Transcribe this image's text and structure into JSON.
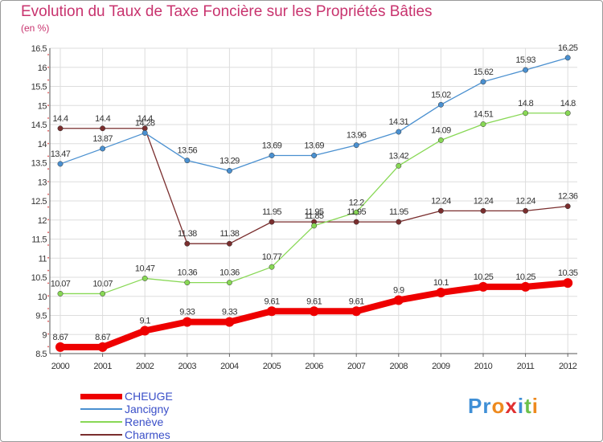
{
  "title": "Evolution du Taux de Taxe Foncière sur les Propriétés Bâties",
  "unit_label": "(en %)",
  "logo": "Proxiti",
  "chart_data": {
    "type": "line",
    "title": "Evolution du Taux de Taxe Foncière sur les Propriétés Bâties",
    "ylabel": "(en %)",
    "x": [
      "2000",
      "2001",
      "2002",
      "2003",
      "2004",
      "2005",
      "2006",
      "2007",
      "2008",
      "2009",
      "2010",
      "2011",
      "2012"
    ],
    "ylim": [
      8.5,
      16.5
    ],
    "yticks": [
      "8.5",
      "9",
      "9.5",
      "10",
      "10.5",
      "11",
      "11.5",
      "12",
      "12.5",
      "13",
      "13.5",
      "14",
      "14.5",
      "15",
      "15.5",
      "16",
      "16.5"
    ],
    "grid": true,
    "legend": "bottom-left",
    "series": [
      {
        "name": "CHEUGE",
        "color": "#ee0000",
        "labels": [
          "8.67",
          "8.67",
          "9.1",
          "9.33",
          "9.33",
          "9.61",
          "9.61",
          "9.61",
          "9.9",
          "10.1",
          "10.25",
          "10.25",
          "10.35"
        ],
        "values": [
          8.67,
          8.67,
          9.1,
          9.33,
          9.33,
          9.61,
          9.61,
          9.61,
          9.9,
          10.1,
          10.25,
          10.25,
          10.35
        ]
      },
      {
        "name": "Jancigny",
        "color": "#4a90d0",
        "labels": [
          "13.47",
          "13.87",
          "14.28",
          "13.56",
          "13.29",
          "13.69",
          "13.69",
          "13.96",
          "14.31",
          "15.02",
          "15.62",
          "15.93",
          "16.25"
        ],
        "values": [
          13.47,
          13.87,
          14.28,
          13.56,
          13.29,
          13.69,
          13.69,
          13.96,
          14.31,
          15.02,
          15.62,
          15.93,
          16.25
        ]
      },
      {
        "name": "Renève",
        "color": "#88d855",
        "labels": [
          "10.07",
          "10.07",
          "10.47",
          "10.36",
          "10.36",
          "10.77",
          "11.85",
          "12.2",
          "13.42",
          "14.09",
          "14.51",
          "14.8",
          "14.8"
        ],
        "values": [
          10.07,
          10.07,
          10.47,
          10.36,
          10.36,
          10.77,
          11.85,
          12.2,
          13.42,
          14.09,
          14.51,
          14.8,
          14.8
        ]
      },
      {
        "name": "Charmes",
        "color": "#7a2e2e",
        "labels": [
          "14.4",
          "14.4",
          "14.4",
          "11.38",
          "11.38",
          "11.95",
          "11.95",
          "11.95",
          "11.95",
          "12.24",
          "12.24",
          "12.24",
          "12.36"
        ],
        "values": [
          14.4,
          14.4,
          14.4,
          11.38,
          11.38,
          11.95,
          11.95,
          11.95,
          11.95,
          12.24,
          12.24,
          12.24,
          12.36
        ]
      }
    ]
  }
}
